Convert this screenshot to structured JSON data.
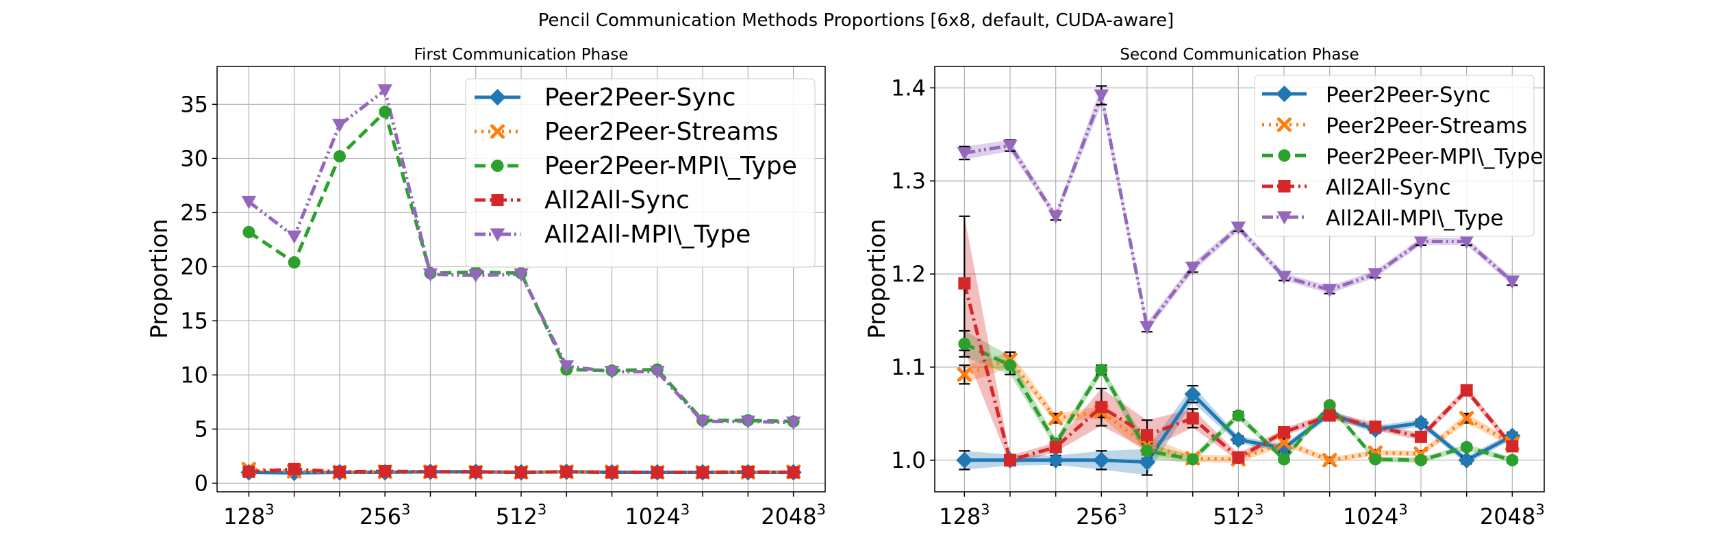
{
  "figure": {
    "title": "Pencil Communication Methods Proportions [6x8, default, CUDA-aware]"
  },
  "chart_data": [
    {
      "type": "line",
      "title": "First Communication Phase",
      "xlabel": "",
      "ylabel": "Proportion",
      "ylim": [
        -0.8,
        38.5
      ],
      "yticks": [
        0,
        5,
        10,
        15,
        20,
        25,
        30,
        35
      ],
      "grid": true,
      "legend_position": "top-right",
      "x": [
        1,
        2,
        3,
        4,
        5,
        6,
        7,
        8,
        9,
        10,
        11,
        12,
        13
      ],
      "xlim": [
        0.3,
        13.7
      ],
      "xtick_positions": [
        1,
        4,
        7,
        10,
        13
      ],
      "xtick_labels": [
        {
          "base": "128",
          "exp": "3"
        },
        {
          "base": "256",
          "exp": "3"
        },
        {
          "base": "512",
          "exp": "3"
        },
        {
          "base": "1024",
          "exp": "3"
        },
        {
          "base": "2048",
          "exp": "3"
        }
      ],
      "series": [
        {
          "name": "Peer2Peer-Sync",
          "color": "#1f77b4",
          "dash": "solid",
          "marker": "diamond",
          "values": [
            1.0,
            0.95,
            1.0,
            1.0,
            1.05,
            1.05,
            1.0,
            1.05,
            1.0,
            1.0,
            1.0,
            1.0,
            1.0
          ]
        },
        {
          "name": "Peer2Peer-Streams",
          "color": "#ff7f0e",
          "dash": "dotted",
          "marker": "x",
          "values": [
            1.3,
            1.1,
            1.0,
            1.05,
            1.05,
            1.0,
            1.0,
            1.05,
            1.05,
            1.0,
            1.0,
            1.0,
            1.05
          ]
        },
        {
          "name": "Peer2Peer-MPI\\_Type",
          "color": "#2ca02c",
          "dash": "dashed",
          "marker": "circle",
          "values": [
            23.2,
            20.4,
            30.2,
            34.3,
            19.4,
            19.5,
            19.4,
            10.5,
            10.4,
            10.5,
            5.8,
            5.8,
            5.7
          ]
        },
        {
          "name": "All2All-Sync",
          "color": "#d62728",
          "dash": "dashdot",
          "marker": "square",
          "values": [
            1.05,
            1.3,
            1.05,
            1.1,
            1.05,
            1.05,
            1.0,
            1.05,
            1.0,
            1.0,
            1.0,
            1.05,
            1.0
          ]
        },
        {
          "name": "All2All-MPI\\_Type",
          "color": "#9467bd",
          "dash": "dashdotdot",
          "marker": "triangle",
          "values": [
            26.0,
            22.8,
            33.1,
            36.3,
            19.3,
            19.2,
            19.3,
            10.8,
            10.3,
            10.3,
            5.7,
            5.7,
            5.6
          ]
        }
      ]
    },
    {
      "type": "line",
      "title": "Second Communication Phase",
      "xlabel": "",
      "ylabel": "Proportion",
      "ylim": [
        0.966,
        1.423
      ],
      "yticks": [
        1.0,
        1.1,
        1.2,
        1.3,
        1.4
      ],
      "grid": true,
      "legend_position": "top-right",
      "x": [
        1,
        2,
        3,
        4,
        5,
        6,
        7,
        8,
        9,
        10,
        11,
        12,
        13
      ],
      "xlim": [
        0.35,
        13.7
      ],
      "xtick_positions": [
        1,
        4,
        7,
        10,
        13
      ],
      "xtick_labels": [
        {
          "base": "128",
          "exp": "3"
        },
        {
          "base": "256",
          "exp": "3"
        },
        {
          "base": "512",
          "exp": "3"
        },
        {
          "base": "1024",
          "exp": "3"
        },
        {
          "base": "2048",
          "exp": "3"
        }
      ],
      "series": [
        {
          "name": "Peer2Peer-Sync",
          "color": "#1f77b4",
          "dash": "solid",
          "marker": "diamond",
          "values": [
            1.0,
            1.0,
            1.0,
            1.0,
            0.998,
            1.071,
            1.022,
            1.013,
            1.05,
            1.033,
            1.04,
            1.0,
            1.026
          ],
          "errors": [
            0.01,
            0.006,
            0.005,
            0.01,
            0.014,
            0.009,
            0.004,
            0.004,
            0.004,
            0.004,
            0.004,
            0.004,
            0.004
          ]
        },
        {
          "name": "Peer2Peer-Streams",
          "color": "#ff7f0e",
          "dash": "dotted",
          "marker": "x",
          "values": [
            1.092,
            1.108,
            1.045,
            1.052,
            1.016,
            1.002,
            1.001,
            1.019,
            1.0,
            1.008,
            1.007,
            1.045,
            1.018
          ],
          "errors": [
            0.01,
            0.008,
            0.005,
            0.006,
            0.01,
            0.004,
            0.004,
            0.004,
            0.003,
            0.003,
            0.003,
            0.005,
            0.004
          ]
        },
        {
          "name": "Peer2Peer-MPI\\_Type",
          "color": "#2ca02c",
          "dash": "dashed",
          "marker": "circle",
          "values": [
            1.125,
            1.102,
            1.018,
            1.097,
            1.01,
            1.001,
            1.048,
            1.001,
            1.059,
            1.001,
            1.0,
            1.014,
            1.0
          ],
          "errors": [
            0.014,
            0.01,
            0.005,
            0.005,
            0.008,
            0.004,
            0.004,
            0.003,
            0.003,
            0.003,
            0.003,
            0.003,
            0.003
          ]
        },
        {
          "name": "All2All-Sync",
          "color": "#d62728",
          "dash": "dashdot",
          "marker": "square",
          "values": [
            1.19,
            1.0,
            1.014,
            1.057,
            1.027,
            1.045,
            1.003,
            1.03,
            1.048,
            1.036,
            1.025,
            1.075,
            1.015
          ],
          "errors": [
            0.072,
            0.005,
            0.005,
            0.02,
            0.016,
            0.01,
            0.004,
            0.004,
            0.004,
            0.004,
            0.004,
            0.004,
            0.004
          ]
        },
        {
          "name": "All2All-MPI\\_Type",
          "color": "#9467bd",
          "dash": "dashdotdot",
          "marker": "triangle",
          "values": [
            1.33,
            1.338,
            1.262,
            1.392,
            1.143,
            1.207,
            1.25,
            1.197,
            1.183,
            1.2,
            1.235,
            1.235,
            1.192
          ],
          "errors": [
            0.007,
            0.006,
            0.004,
            0.01,
            0.005,
            0.005,
            0.004,
            0.004,
            0.004,
            0.004,
            0.004,
            0.004,
            0.004
          ]
        }
      ]
    }
  ]
}
